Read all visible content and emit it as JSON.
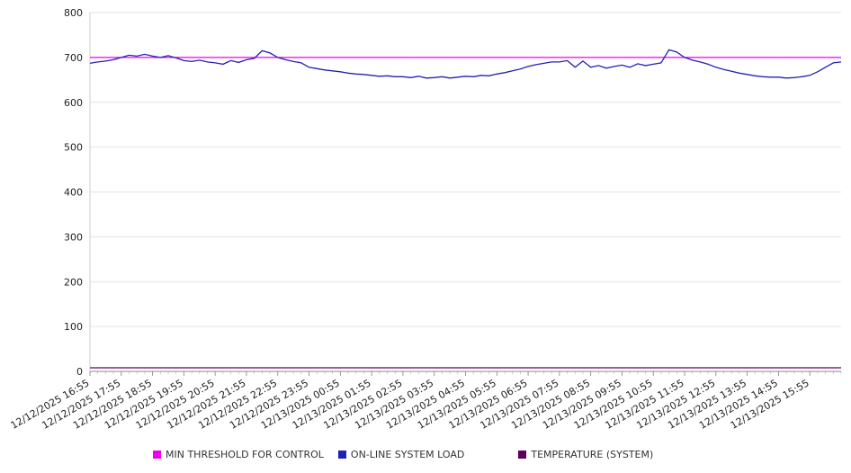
{
  "chart_data": {
    "type": "line",
    "title": "",
    "xlabel": "",
    "ylabel": "",
    "ylim": [
      0,
      800
    ],
    "yticks": [
      0,
      100,
      200,
      300,
      400,
      500,
      600,
      700,
      800
    ],
    "grid": true,
    "legend_position": "bottom",
    "points_per_hour": 4,
    "x_labels": [
      "12/12/2025 16:55",
      "12/12/2025 17:55",
      "12/12/2025 18:55",
      "12/12/2025 19:55",
      "12/12/2025 20:55",
      "12/12/2025 21:55",
      "12/12/2025 22:55",
      "12/12/2025 23:55",
      "12/13/2025 00:55",
      "12/13/2025 01:55",
      "12/13/2025 02:55",
      "12/13/2025 03:55",
      "12/13/2025 04:55",
      "12/13/2025 05:55",
      "12/13/2025 06:55",
      "12/13/2025 07:55",
      "12/13/2025 08:55",
      "12/13/2025 09:55",
      "12/13/2025 10:55",
      "12/13/2025 11:55",
      "12/13/2025 12:55",
      "12/13/2025 13:55",
      "12/13/2025 14:55",
      "12/13/2025 15:55"
    ],
    "series": [
      {
        "name": "MIN THRESHOLD FOR CONTROL",
        "color": "#ee00ee",
        "constant": 700
      },
      {
        "name": "ON-LINE SYSTEM LOAD",
        "color": "#2222b2",
        "values": [
          687,
          690,
          692,
          695,
          700,
          705,
          703,
          707,
          703,
          700,
          704,
          699,
          693,
          691,
          694,
          690,
          688,
          685,
          693,
          689,
          695,
          698,
          715,
          710,
          700,
          695,
          691,
          688,
          678,
          675,
          672,
          670,
          668,
          665,
          663,
          662,
          660,
          658,
          659,
          657,
          657,
          655,
          658,
          654,
          655,
          657,
          654,
          656,
          658,
          657,
          660,
          659,
          663,
          666,
          670,
          674,
          680,
          684,
          687,
          690,
          690,
          693,
          678,
          692,
          678,
          682,
          676,
          680,
          683,
          678,
          686,
          682,
          685,
          688,
          717,
          712,
          700,
          694,
          690,
          685,
          678,
          673,
          669,
          665,
          662,
          659,
          657,
          656,
          656,
          654,
          655,
          657,
          660,
          668,
          678,
          688,
          690
        ]
      },
      {
        "name": "TEMPERATURE (SYSTEM)",
        "color": "#5c005c",
        "constant": 8
      }
    ]
  }
}
